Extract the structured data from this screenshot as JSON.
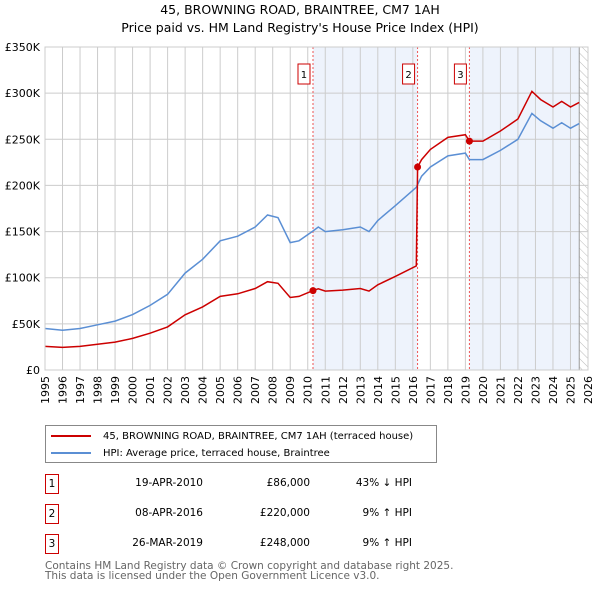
{
  "chart_data": {
    "type": "line",
    "title": "45, BROWNING ROAD, BRAINTREE, CM7 1AH",
    "subtitle": "Price paid vs. HM Land Registry's House Price Index (HPI)",
    "ylim": [
      0,
      350000
    ],
    "xlim": [
      1995,
      2026
    ],
    "y_ticks": [
      "£0",
      "£50K",
      "£100K",
      "£150K",
      "£200K",
      "£250K",
      "£300K",
      "£350K"
    ],
    "x_ticks": [
      "1995",
      "1996",
      "1997",
      "1998",
      "1999",
      "2000",
      "2001",
      "2002",
      "2003",
      "2004",
      "2005",
      "2006",
      "2007",
      "2008",
      "2009",
      "2010",
      "2011",
      "2012",
      "2013",
      "2014",
      "2015",
      "2016",
      "2017",
      "2018",
      "2019",
      "2020",
      "2021",
      "2022",
      "2023",
      "2024",
      "2025",
      "2026"
    ],
    "grid": true,
    "series": [
      {
        "name": "45, BROWNING ROAD, BRAINTREE, CM7 1AH (terraced house)",
        "color": "#cc0000",
        "x": [
          1995,
          1996,
          1997,
          1998,
          1999,
          2000,
          2001,
          2002,
          2003,
          2004,
          2005,
          2006,
          2007,
          2007.7,
          2008.3,
          2009.0,
          2009.5,
          2010.3,
          2010.6,
          2011,
          2012,
          2013,
          2013.5,
          2014,
          2015,
          2016.2,
          2016.27,
          2016.5,
          2017,
          2018,
          2019,
          2019.23,
          2020,
          2021,
          2022,
          2022.8,
          2023.3,
          2024,
          2024.5,
          2025,
          2025.5
        ],
        "y": [
          25600,
          24500,
          25600,
          27900,
          30200,
          34200,
          39900,
          46700,
          59800,
          68400,
          79800,
          82600,
          88300,
          95700,
          94000,
          78600,
          79800,
          86000,
          88000,
          85500,
          86600,
          88300,
          85500,
          92300,
          101400,
          112800,
          220000,
          228000,
          239000,
          252000,
          255000,
          248000,
          248000,
          259000,
          272000,
          302000,
          293000,
          285000,
          291000,
          285000,
          290000
        ]
      },
      {
        "name": "HPI: Average price, terraced house, Braintree",
        "color": "#5b8fd4",
        "x": [
          1995,
          1996,
          1997,
          1998,
          1999,
          2000,
          2001,
          2002,
          2003,
          2004,
          2005,
          2006,
          2007,
          2007.7,
          2008.3,
          2009.0,
          2009.5,
          2010.3,
          2010.6,
          2011,
          2012,
          2013,
          2013.5,
          2014,
          2015,
          2016.2,
          2016.27,
          2016.5,
          2017,
          2018,
          2019,
          2019.23,
          2020,
          2021,
          2022,
          2022.8,
          2023.3,
          2024,
          2024.5,
          2025,
          2025.5
        ],
        "y": [
          45000,
          43000,
          45000,
          49000,
          53000,
          60000,
          70000,
          82000,
          105000,
          120000,
          140000,
          145000,
          155000,
          168000,
          165000,
          138000,
          140000,
          150600,
          155000,
          150000,
          152000,
          155000,
          150000,
          162000,
          178000,
          198000,
          201000,
          210000,
          220000,
          232000,
          235000,
          228000,
          228000,
          238000,
          250000,
          278000,
          270000,
          262000,
          268000,
          262000,
          267000
        ]
      }
    ],
    "sales": [
      {
        "label": "1",
        "date": "19-APR-2010",
        "x": 2010.3,
        "price": "£86,000",
        "value": 86000,
        "hpi": "43% ↓ HPI"
      },
      {
        "label": "2",
        "date": "08-APR-2016",
        "x": 2016.27,
        "price": "£220,000",
        "value": 220000,
        "hpi": "9% ↑ HPI"
      },
      {
        "label": "3",
        "date": "26-MAR-2019",
        "x": 2019.23,
        "price": "£248,000",
        "value": 248000,
        "hpi": "9% ↑ HPI"
      }
    ],
    "legend_placement": "below"
  },
  "footer": {
    "line1": "Contains HM Land Registry data © Crown copyright and database right 2025.",
    "line2": "This data is licensed under the Open Government Licence v3.0."
  }
}
